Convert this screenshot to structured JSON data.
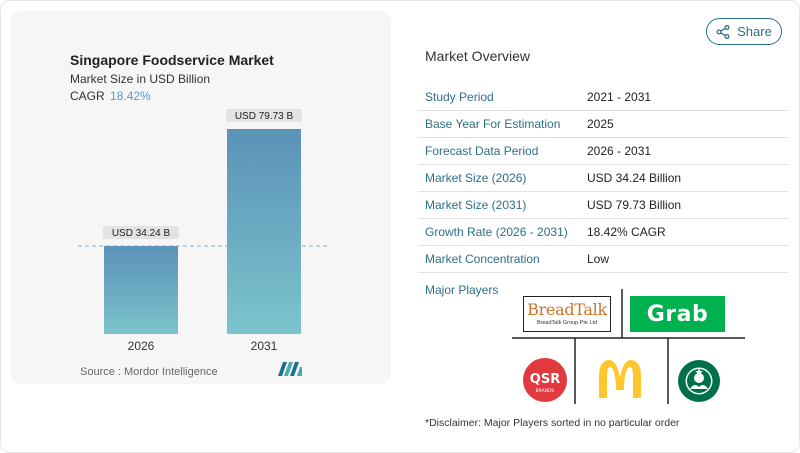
{
  "chart": {
    "title": "Singapore Foodservice Market",
    "subtitle": "Market Size in USD Billion",
    "cagr_label": "CAGR",
    "cagr_value": "18.42%",
    "source": "Source :  Mordor Intelligence",
    "bar_color_top": "#5b92b8",
    "bar_color_bottom": "#7cc4cc"
  },
  "chart_data": {
    "type": "bar",
    "categories": [
      "2026",
      "2031"
    ],
    "values": [
      34.24,
      79.73
    ],
    "data_labels": [
      "USD 34.24 B",
      "USD 79.73 B"
    ],
    "title": "Singapore Foodservice Market",
    "subtitle": "Market Size in USD Billion",
    "ylim": [
      0,
      80
    ]
  },
  "share": {
    "label": "Share"
  },
  "overview": {
    "title": "Market Overview",
    "rows": [
      {
        "key": "Study Period",
        "value": "2021 - 2031"
      },
      {
        "key": "Base Year For Estimation",
        "value": "2025"
      },
      {
        "key": "Forecast Data Period",
        "value": "2026 - 2031"
      },
      {
        "key": "Market Size (2026)",
        "value": "USD 34.24 Billion"
      },
      {
        "key": "Market Size (2031)",
        "value": "USD 79.73 Billion"
      },
      {
        "key": "Growth Rate (2026 - 2031)",
        "value": "18.42% CAGR"
      },
      {
        "key": "Market Concentration",
        "value": "Low"
      }
    ]
  },
  "major_players": {
    "label": "Major Players",
    "logos": [
      {
        "name": "BreadTalk",
        "text": "BreadTalk",
        "subtext": "BreadTalk Group Pte Ltd",
        "color": "#c9742a"
      },
      {
        "name": "Grab",
        "text": "Grab",
        "color": "#00b14f"
      },
      {
        "name": "QSR Brands",
        "text": "QSR",
        "subtext": "BRANDS",
        "color": "#e03a3e"
      },
      {
        "name": "McDonald's",
        "text": "M",
        "color": "#ffc72c"
      },
      {
        "name": "Starbucks",
        "text": "",
        "color": "#00704a"
      }
    ]
  },
  "disclaimer": "*Disclaimer: Major Players sorted in no particular order"
}
